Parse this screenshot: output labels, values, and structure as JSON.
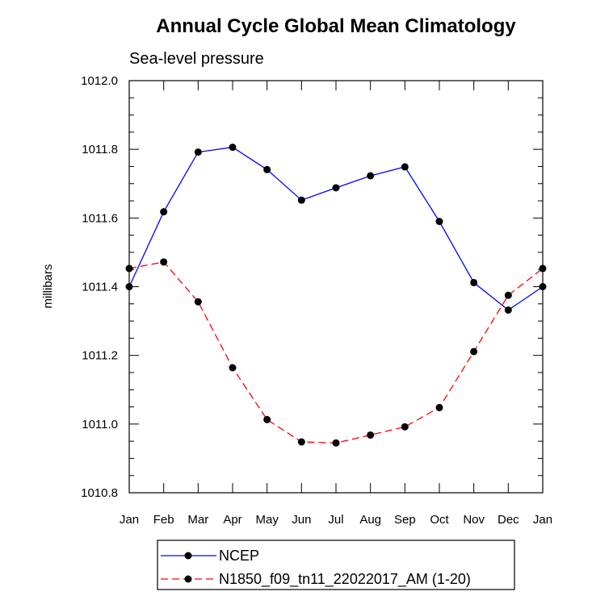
{
  "chart_data": {
    "type": "line",
    "title": "Annual Cycle Global Mean Climatology",
    "subtitle": "Sea-level pressure",
    "xlabel": "",
    "ylabel": "millibars",
    "categories": [
      "Jan",
      "Feb",
      "Mar",
      "Apr",
      "May",
      "Jun",
      "Jul",
      "Aug",
      "Sep",
      "Oct",
      "Nov",
      "Dec",
      "Jan"
    ],
    "ylim": [
      1010.8,
      1012.0
    ],
    "yticks": [
      "1010.8",
      "1011.0",
      "1011.2",
      "1011.4",
      "1011.6",
      "1011.8",
      "1012.0"
    ],
    "series": [
      {
        "name": "NCEP",
        "color": "#0000ff",
        "style": "solid",
        "values": [
          1011.4,
          1011.618,
          1011.792,
          1011.806,
          1011.741,
          1011.652,
          1011.688,
          1011.723,
          1011.749,
          1011.59,
          1011.412,
          1011.332,
          1011.4
        ]
      },
      {
        "name": "N1850_f09_tn11_22022017_AM (1-20)",
        "color": "#ff0000",
        "style": "dashed",
        "values": [
          1011.453,
          1011.472,
          1011.356,
          1011.164,
          1011.013,
          1010.948,
          1010.945,
          1010.968,
          1010.992,
          1011.048,
          1011.211,
          1011.375,
          1011.453
        ]
      }
    ],
    "legend": "bottom"
  }
}
